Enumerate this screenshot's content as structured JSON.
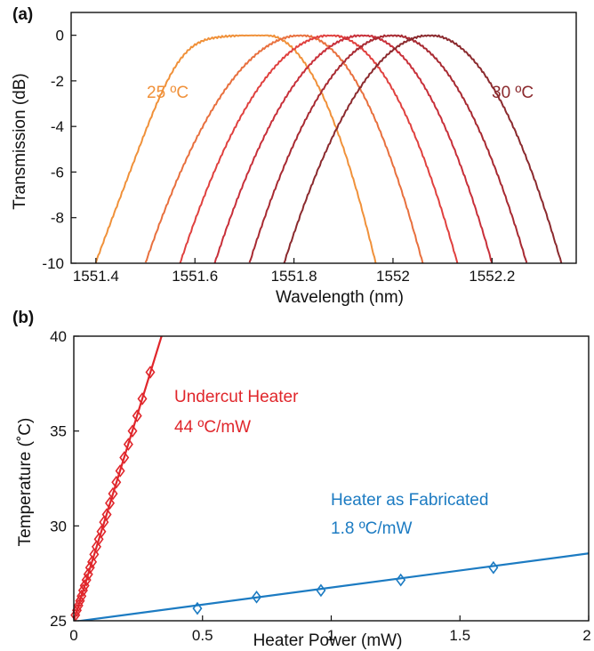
{
  "chart_data": [
    {
      "panel": "(a)",
      "type": "line",
      "xlabel": "Wavelength (nm)",
      "ylabel": "Transmission (dB)",
      "xlim": [
        1551.35,
        1552.37
      ],
      "ylim": [
        -10,
        1
      ],
      "xticks": [
        1551.4,
        1551.6,
        1551.8,
        1552,
        1552.2
      ],
      "xtick_labels": [
        "1551.4",
        "1551.6",
        "1551.8",
        "1552",
        "1552.2"
      ],
      "yticks": [
        0,
        -2,
        -4,
        -6,
        -8,
        -10
      ],
      "ytick_labels": [
        "0",
        "-2",
        "-4",
        "-6",
        "-8",
        "-10"
      ],
      "grid": false,
      "series": [
        {
          "color": "#F0913A",
          "peak": 1551.745,
          "left_edge": 1551.4,
          "right_edge": 1551.965,
          "shoulder": true
        },
        {
          "color": "#E8703E",
          "peak": 1551.815,
          "left_edge": 1551.5,
          "right_edge": 1552.06
        },
        {
          "color": "#E0413F",
          "peak": 1551.875,
          "left_edge": 1551.57,
          "right_edge": 1552.13
        },
        {
          "color": "#C8303A",
          "peak": 1551.94,
          "left_edge": 1551.64,
          "right_edge": 1552.2
        },
        {
          "color": "#A82A32",
          "peak": 1552.0,
          "left_edge": 1551.71,
          "right_edge": 1552.27
        },
        {
          "color": "#8B2A2E",
          "peak": 1552.075,
          "left_edge": 1551.78,
          "right_edge": 1552.34
        }
      ],
      "annotations": [
        {
          "text": "25 ºC",
          "color": "#F0913A"
        },
        {
          "text": "30 ºC",
          "color": "#8B2A2E"
        }
      ]
    },
    {
      "panel": "(b)",
      "type": "scatter",
      "xlabel": "Heater Power (mW)",
      "ylabel": "Temperature (˚C)",
      "xlim": [
        0,
        2
      ],
      "ylim": [
        25,
        40
      ],
      "xticks": [
        0,
        0.5,
        1,
        1.5,
        2
      ],
      "xtick_labels": [
        "0",
        "0.5",
        "1",
        "1.5",
        "2"
      ],
      "yticks": [
        25,
        30,
        35,
        40
      ],
      "ytick_labels": [
        "25",
        "30",
        "35",
        "40"
      ],
      "grid": false,
      "series": [
        {
          "name": "Undercut Heater",
          "color": "#E0262B",
          "marker": "diamond",
          "fit_slope": 44,
          "fit_intercept": 25,
          "x": [
            0.006,
            0.012,
            0.018,
            0.024,
            0.03,
            0.036,
            0.042,
            0.049,
            0.056,
            0.063,
            0.071,
            0.079,
            0.088,
            0.097,
            0.107,
            0.117,
            0.128,
            0.14,
            0.152,
            0.165,
            0.18,
            0.196,
            0.212,
            0.228,
            0.246,
            0.266,
            0.297
          ],
          "y": [
            25.3,
            25.55,
            25.8,
            26.05,
            26.3,
            26.6,
            26.85,
            27.15,
            27.45,
            27.8,
            28.1,
            28.5,
            28.9,
            29.3,
            29.7,
            30.2,
            30.6,
            31.2,
            31.7,
            32.3,
            32.9,
            33.6,
            34.3,
            35.0,
            35.8,
            36.7,
            38.1
          ]
        },
        {
          "name": "Heater as Fabricated",
          "color": "#1C7BC2",
          "marker": "diamond",
          "fit_slope": 1.8,
          "fit_intercept": 24.95,
          "x": [
            0.48,
            0.71,
            0.96,
            1.27,
            1.63
          ],
          "y": [
            25.65,
            26.25,
            26.6,
            27.15,
            27.8
          ]
        }
      ],
      "annotations": [
        {
          "text": "Undercut Heater",
          "color": "#E0262B"
        },
        {
          "text": "44 ºC/mW",
          "color": "#E0262B"
        },
        {
          "text": "Heater as Fabricated",
          "color": "#1C7BC2"
        },
        {
          "text": "1.8 ºC/mW",
          "color": "#1C7BC2"
        }
      ]
    }
  ]
}
